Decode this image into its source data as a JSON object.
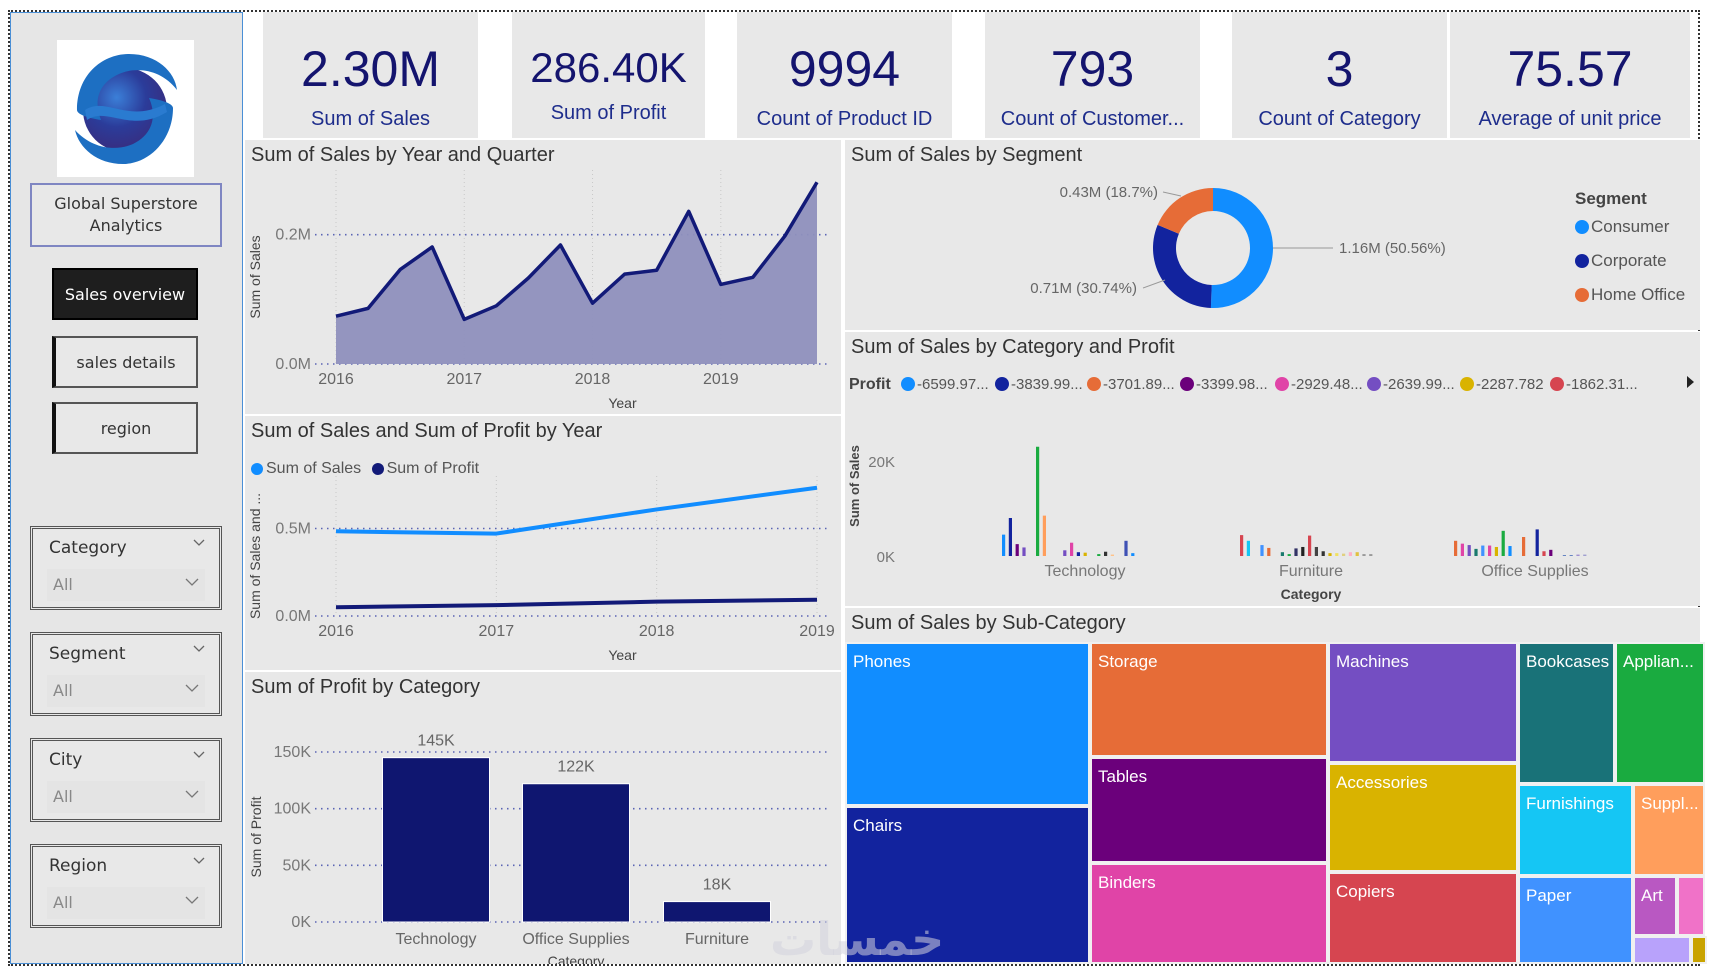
{
  "sidebar": {
    "logo": "globe-swoosh-logo",
    "title": "Global Superstore Analytics",
    "nav": [
      {
        "label": "Sales overview",
        "active": true
      },
      {
        "label": "sales details",
        "active": false
      },
      {
        "label": "region",
        "active": false
      }
    ],
    "slicers": [
      {
        "label": "Category",
        "value": "All"
      },
      {
        "label": "Segment",
        "value": "All"
      },
      {
        "label": "City",
        "value": "All"
      },
      {
        "label": "Region",
        "value": "All"
      }
    ]
  },
  "kpis": [
    {
      "value": "2.30M",
      "label": "Sum of Sales"
    },
    {
      "value": "286.40K",
      "label": "Sum of Profit"
    },
    {
      "value": "9994",
      "label": "Count of Product ID"
    },
    {
      "value": "793",
      "label": "Count of Customer..."
    },
    {
      "value": "3",
      "label": "Count of Category"
    },
    {
      "value": "75.57",
      "label": "Average of unit price"
    }
  ],
  "colors": {
    "kpi_value": "#14146e",
    "navy": "#121a78",
    "light_blue": "#118dff",
    "area_fill": "#8f90bd",
    "orange": "#e66c37"
  },
  "watermark": "خمسات",
  "chart_data": [
    {
      "id": "sales_by_year_quarter",
      "type": "area",
      "title": "Sum of Sales by Year and Quarter",
      "xlabel": "Year",
      "ylabel": "Sum of Sales",
      "x_ticks": [
        "2016",
        "2017",
        "2018",
        "2019"
      ],
      "y_ticks": [
        "0.0M",
        "0.2M"
      ],
      "ylim": [
        0,
        0.3
      ],
      "x": [
        "2016 Q1",
        "2016 Q2",
        "2016 Q3",
        "2016 Q4",
        "2017 Q1",
        "2017 Q2",
        "2017 Q3",
        "2017 Q4",
        "2018 Q1",
        "2018 Q2",
        "2018 Q3",
        "2018 Q4",
        "2019 Q1",
        "2019 Q2",
        "2019 Q3",
        "2019 Q4"
      ],
      "values": [
        0.074,
        0.086,
        0.146,
        0.181,
        0.069,
        0.09,
        0.133,
        0.184,
        0.094,
        0.139,
        0.145,
        0.236,
        0.123,
        0.134,
        0.198,
        0.281
      ],
      "grid": true
    },
    {
      "id": "sales_profit_by_year",
      "type": "line",
      "title": "Sum of Sales and Sum of Profit by Year",
      "xlabel": "Year",
      "ylabel": "Sum of Sales and ...",
      "x_ticks": [
        "2016",
        "2017",
        "2018",
        "2019"
      ],
      "y_ticks": [
        "0.0M",
        "0.5M"
      ],
      "ylim": [
        0,
        0.8
      ],
      "legend_position": "top-left",
      "series": [
        {
          "name": "Sum of Sales",
          "color": "#118dff",
          "values": [
            0.484,
            0.471,
            0.609,
            0.733
          ]
        },
        {
          "name": "Sum of Profit",
          "color": "#121a78",
          "values": [
            0.05,
            0.062,
            0.082,
            0.093
          ]
        }
      ],
      "grid": true
    },
    {
      "id": "profit_by_category",
      "type": "bar",
      "title": "Sum of Profit by Category",
      "xlabel": "Category",
      "ylabel": "Sum of Profit",
      "categories": [
        "Technology",
        "Office Supplies",
        "Furniture"
      ],
      "values": [
        145,
        122,
        18
      ],
      "data_labels": [
        "145K",
        "122K",
        "18K"
      ],
      "y_ticks": [
        "0K",
        "50K",
        "100K",
        "150K"
      ],
      "ylim": [
        0,
        150
      ],
      "unit": "K",
      "grid": true
    },
    {
      "id": "sales_by_segment",
      "type": "pie",
      "title": "Sum of Sales by Segment",
      "legend_title": "Segment",
      "legend_position": "right",
      "slices": [
        {
          "name": "Consumer",
          "value": 1.16,
          "percent": 50.56,
          "label": "1.16M (50.56%)",
          "color": "#118dff"
        },
        {
          "name": "Corporate",
          "value": 0.71,
          "percent": 30.74,
          "label": "0.71M (30.74%)",
          "color": "#12239e"
        },
        {
          "name": "Home Office",
          "value": 0.43,
          "percent": 18.7,
          "label": "0.43M (18.7%)",
          "color": "#e66c37"
        }
      ]
    },
    {
      "id": "sales_by_category_profit",
      "type": "bar",
      "title": "Sum of Sales by Category and Profit",
      "xlabel": "Category",
      "ylabel": "Sum of Sales",
      "legend_title": "Profit",
      "legend_position": "top",
      "legend": [
        {
          "label": "-6599.97...",
          "color": "#118dff"
        },
        {
          "label": "-3839.99...",
          "color": "#12239e"
        },
        {
          "label": "-3701.89...",
          "color": "#e66c37"
        },
        {
          "label": "-3399.98...",
          "color": "#6b007b"
        },
        {
          "label": "-2929.48...",
          "color": "#e044a7"
        },
        {
          "label": "-2639.99...",
          "color": "#744ec2"
        },
        {
          "label": "-2287.782",
          "color": "#d9b300"
        },
        {
          "label": "-1862.31...",
          "color": "#d64550"
        }
      ],
      "categories": [
        "Technology",
        "Furniture",
        "Office Supplies"
      ],
      "y_ticks": [
        "0K",
        "20K"
      ],
      "ylim": [
        0,
        24
      ],
      "unit": "K",
      "bars": [
        {
          "category": "Technology",
          "values": [
            4.5,
            8.0,
            2.5,
            1.8,
            0,
            23.0,
            8.5,
            0,
            0,
            1.2,
            2.8,
            0.8,
            0.7,
            0,
            0.4,
            0.9,
            0.3,
            0,
            3.2,
            0.6
          ],
          "colors": [
            "#118dff",
            "#12239e",
            "#6b007b",
            "#744ec2",
            "#e8e8e8",
            "#1aab40",
            "#ff9e5c",
            "#e8e8e8",
            "#e8e8e8",
            "#744ec2",
            "#e044a7",
            "#12239e",
            "#d9b300",
            "#e8e8e8",
            "#1aab40",
            "#333333",
            "#ffc38a",
            "#e8e8e8",
            "#3f51b5",
            "#118dff"
          ]
        },
        {
          "category": "Furniture",
          "values": [
            4.4,
            3.2,
            0,
            2.3,
            1.7,
            0,
            0.8,
            0.4,
            1.6,
            1.9,
            4.3,
            1.9,
            1.0,
            0.6,
            0.6,
            0.5,
            0.8,
            0.8,
            0.4,
            0.4
          ],
          "colors": [
            "#d64550",
            "#15c6f4",
            "#e8e8e8",
            "#4092ff",
            "#e66c37",
            "#e8e8e8",
            "#1a7a6e",
            "#1aab40",
            "#333366",
            "#222222",
            "#d64550",
            "#444444",
            "#333333",
            "#d9b300",
            "#f0e060",
            "#e0d080",
            "#ffb0c8",
            "#e0c040",
            "#999999",
            "#999999"
          ]
        },
        {
          "category": "Office Supplies",
          "values": [
            3.2,
            2.6,
            2.3,
            1.5,
            2.2,
            2.2,
            1.9,
            5.3,
            2.1,
            0,
            4.0,
            0,
            5.6,
            1.0,
            1.3,
            0,
            0.2,
            0.2,
            0.3,
            0.3
          ],
          "colors": [
            "#e66c37",
            "#e044a7",
            "#744ec2",
            "#1a7a6e",
            "#4092ff",
            "#e044a7",
            "#d9b300",
            "#1aab40",
            "#118dff",
            "#e8e8e8",
            "#e66c37",
            "#e8e8e8",
            "#12239e",
            "#d64550",
            "#6b007b",
            "#e8e8e8",
            "#6080c0",
            "#6080c0",
            "#a090d0",
            "#a0a0d0"
          ]
        }
      ]
    },
    {
      "id": "sales_by_subcategory",
      "type": "heatmap",
      "subtype": "treemap",
      "title": "Sum of Sales by Sub-Category",
      "cells": [
        {
          "name": "Phones",
          "color": "#118dff"
        },
        {
          "name": "Chairs",
          "color": "#12239e"
        },
        {
          "name": "Storage",
          "color": "#e66c37"
        },
        {
          "name": "Tables",
          "color": "#6b007b"
        },
        {
          "name": "Binders",
          "color": "#e044a7"
        },
        {
          "name": "Machines",
          "color": "#744ec2"
        },
        {
          "name": "Accessories",
          "color": "#d9b300"
        },
        {
          "name": "Copiers",
          "color": "#d64550"
        },
        {
          "name": "Bookcases",
          "color": "#197278"
        },
        {
          "name": "Applian...",
          "color": "#1aab40"
        },
        {
          "name": "Furnishings",
          "color": "#15c6f4"
        },
        {
          "name": "Suppl...",
          "color": "#ff9e5c"
        },
        {
          "name": "Paper",
          "color": "#4092ff"
        },
        {
          "name": "Art",
          "color": "#b958c2"
        },
        {
          "name": "",
          "color": "#f072c8"
        },
        {
          "name": "",
          "color": "#b8a2fb"
        },
        {
          "name": "",
          "color": "#c9a300"
        }
      ]
    }
  ]
}
